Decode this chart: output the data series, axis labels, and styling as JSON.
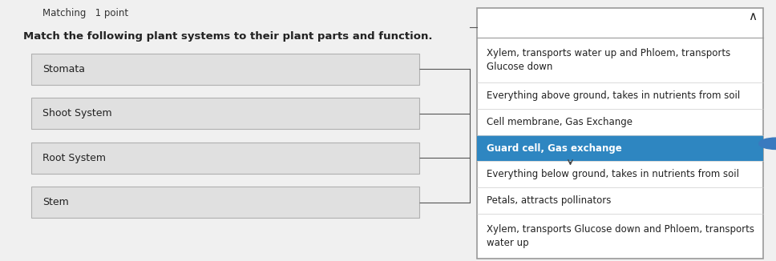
{
  "title_label": "Matching   1 point",
  "subtitle": "Match the following plant systems to their plant parts and function.",
  "left_items": [
    "Stomata",
    "Shoot System",
    "Root System",
    "Stem"
  ],
  "right_items": [
    "Xylem, transports water up and Phloem, transports\nGlucose down",
    "Everything above ground, takes in nutrients from soil",
    "Cell membrane, Gas Exchange",
    "Guard cell, Gas exchange",
    "Everything below ground, takes in nutrients from soil",
    "Petals, attracts pollinators",
    "Xylem, transports Glucose down and Phloem, transports\nwater up"
  ],
  "highlighted_index": 3,
  "highlight_color": "#2e86c1",
  "highlight_text_color": "#ffffff",
  "bg_color": "#f0f0f0",
  "box_color": "#e0e0e0",
  "box_border": "#b0b0b0",
  "dropdown_bg": "#ffffff",
  "dropdown_border": "#999999",
  "line_color": "#555555",
  "text_color": "#222222",
  "title_color": "#333333",
  "font_size_title": 8.5,
  "font_size_subtitle": 9.5,
  "font_size_items": 9,
  "font_size_right": 8.5,
  "caret_char": "∧"
}
